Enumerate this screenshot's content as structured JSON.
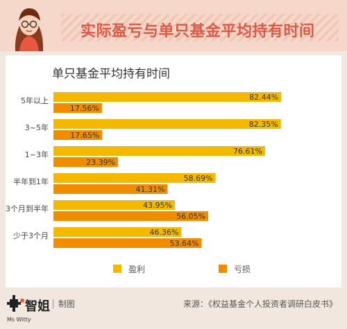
{
  "header": {
    "title": "实际盈亏与单只基金平均持有时间"
  },
  "legend": {
    "profit": "盈利",
    "loss": "亏损"
  },
  "colors": {
    "profit": "#f5b800",
    "loss": "#f08c00",
    "title_red": "#d85a48"
  },
  "footer": {
    "logo_text": "智姐",
    "logo_sub": "Ms Witty",
    "made": "制图",
    "source": "来源：《权益基金个人投资者调研白皮书》"
  },
  "chart_data": {
    "type": "bar",
    "orientation": "horizontal",
    "title": "单只基金平均持有时间",
    "categories": [
      "5年以上",
      "3~5年",
      "1~3年",
      "半年到1年",
      "3个月到半年",
      "少于3个月"
    ],
    "series": [
      {
        "name": "盈利",
        "values": [
          82.44,
          82.35,
          76.61,
          58.69,
          43.95,
          46.36
        ],
        "labels": [
          "82.44%",
          "82.35%",
          "76.61%",
          "58.69%",
          "43.95%",
          "46.36%"
        ]
      },
      {
        "name": "亏损",
        "values": [
          17.56,
          17.65,
          23.39,
          41.31,
          56.05,
          53.64
        ],
        "labels": [
          "17.56%",
          "17.65%",
          "23.39%",
          "41.31%",
          "56.05%",
          "53.64%"
        ]
      }
    ],
    "xlim": [
      0,
      100
    ],
    "grid": false,
    "legend_position": "bottom"
  }
}
